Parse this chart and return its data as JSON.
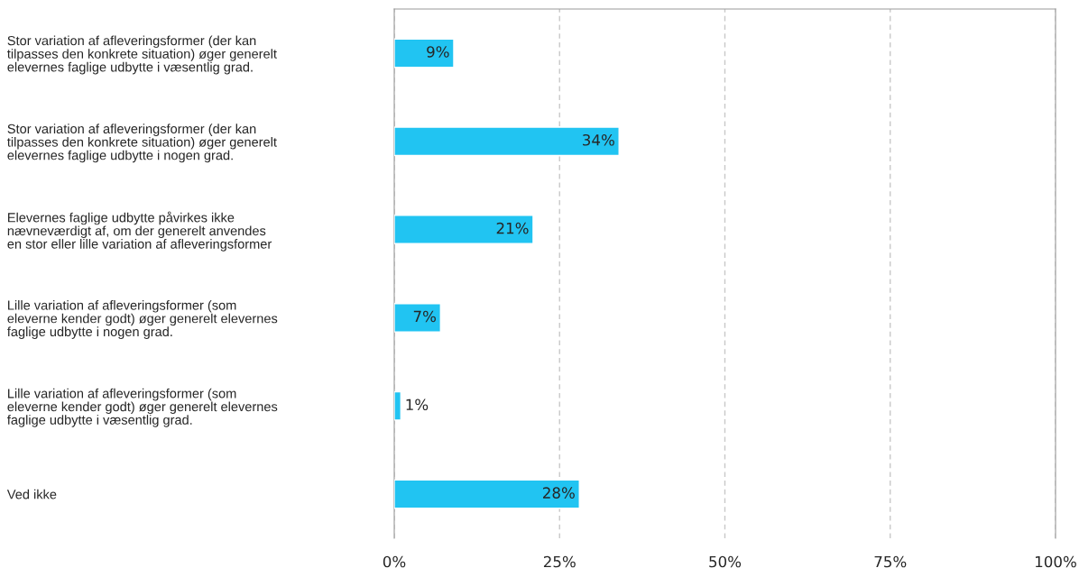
{
  "chart_data": {
    "type": "bar",
    "orientation": "horizontal",
    "categories": [
      "Stor variation af afleveringsformer (der kan\ntilpasses den konkrete situation) øger generelt\nelevernes faglige udbytte i væsentlig grad.",
      "Stor variation af afleveringsformer (der kan\ntilpasses den konkrete situation) øger generelt\nelevernes faglige udbytte i nogen grad.",
      "Elevernes faglige udbytte påvirkes ikke\nnævneværdigt af, om der generelt anvendes\nen stor eller lille variation af afleveringsformer",
      "Lille variation af afleveringsformer (som\neleverne kender godt) øger generelt elevernes\nfaglige udbytte i nogen grad.",
      "Lille variation af afleveringsformer (som\neleverne kender godt) øger generelt elevernes\nfaglige udbytte i væsentlig grad.",
      "Ved ikke"
    ],
    "values": [
      9,
      34,
      21,
      7,
      1,
      28
    ],
    "value_labels": [
      "9%",
      "34%",
      "21%",
      "7%",
      "1%",
      "28%"
    ],
    "color": "#21c4f2",
    "xlim": [
      0,
      100
    ],
    "xticks": [
      {
        "value": 0,
        "label": "0%"
      },
      {
        "value": 25,
        "label": "25%"
      },
      {
        "value": 50,
        "label": "50%"
      },
      {
        "value": 75,
        "label": "75%"
      },
      {
        "value": 100,
        "label": "100%"
      }
    ],
    "grid": "x",
    "legend": false
  }
}
